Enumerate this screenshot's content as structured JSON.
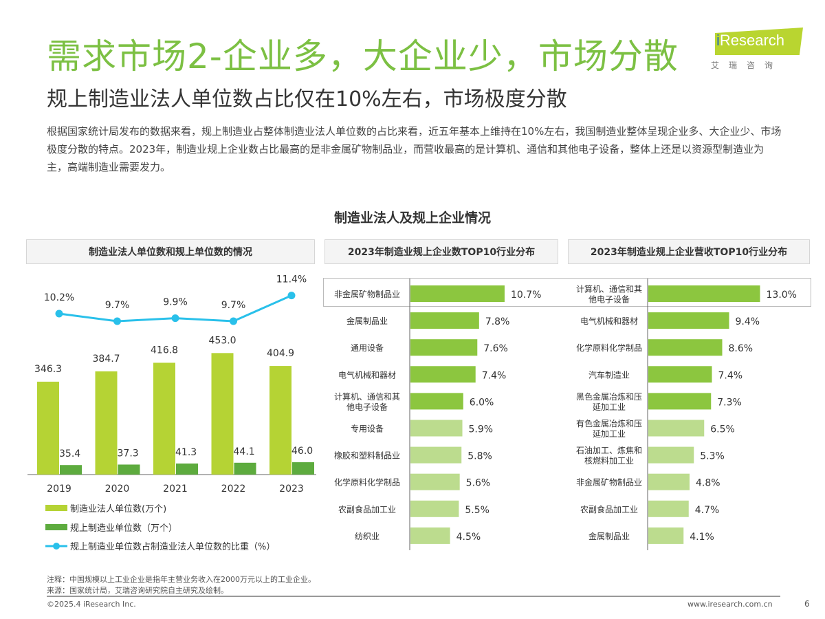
{
  "header": {
    "title": "需求市场2-企业多，大企业少，市场分散",
    "subtitle": "规上制造业法人单位数占比仅在10%左右，市场极度分散",
    "body": "根据国家统计局发布的数据来看，规上制造业占整体制造业法人单位数的占比来看，近五年基本上维持在10%左右，我国制造业整体呈现企业多、大企业少、市场极度分散的特点。2023年，制造业规上企业数占比最高的是非金属矿物制品业，而营收最高的是计算机、通信和其他电子设备，整体上还是以资源型制造业为主，高端制造业需要发力。"
  },
  "logo": {
    "brand": "iResearch",
    "cn": "艾瑞咨询"
  },
  "main_title": "制造业法人及规上企业情况",
  "colors": {
    "title": "#7cc043",
    "legal_units": "#b5d334",
    "above_scale": "#5dab3e",
    "ratio_line": "#29c0ea",
    "hbar_top5": "#8cc63f",
    "hbar_rest": "#bcdc8e"
  },
  "chart_data": [
    {
      "type": "bar+line",
      "title": "制造业法人单位数和规上单位数的情况",
      "categories": [
        "2019",
        "2020",
        "2021",
        "2022",
        "2023"
      ],
      "series": [
        {
          "name": "制造业法人单位数(万个)",
          "type": "bar",
          "values": [
            346.3,
            384.7,
            416.8,
            453.0,
            404.9
          ],
          "labels": [
            "346.3",
            "384.7",
            "416.8",
            "453.0",
            "404.9"
          ]
        },
        {
          "name": "规上制造业单位数（万个）",
          "type": "bar",
          "values": [
            35.4,
            37.3,
            41.3,
            44.1,
            46.0
          ],
          "labels": [
            "35.4",
            "37.3",
            "41.3",
            "44.1",
            "46.0"
          ]
        },
        {
          "name": "规上制造业单位数占制造业法人单位数的比重（%）",
          "type": "line",
          "values": [
            10.2,
            9.7,
            9.9,
            9.7,
            11.4
          ],
          "labels": [
            "10.2%",
            "9.7%",
            "9.9%",
            "9.7%",
            "11.4%"
          ]
        }
      ],
      "legend": "bottom"
    },
    {
      "type": "bar",
      "orientation": "horizontal",
      "title": "2023年制造业规上企业数TOP10行业分布",
      "categories": [
        "非金属矿物制品业",
        "金属制品业",
        "通用设备",
        "电气机械和器材",
        "计算机、通信和其他电子设备",
        "专用设备",
        "橡胶和塑料制品业",
        "化学原料化学制品",
        "农副食品加工业",
        "纺织业"
      ],
      "category_lines": [
        [
          "非金属矿物制品业"
        ],
        [
          "金属制品业"
        ],
        [
          "通用设备"
        ],
        [
          "电气机械和器材"
        ],
        [
          "计算机、通信和其",
          "他电子设备"
        ],
        [
          "专用设备"
        ],
        [
          "橡胶和塑料制品业"
        ],
        [
          "化学原料化学制品"
        ],
        [
          "农副食品加工业"
        ],
        [
          "纺织业"
        ]
      ],
      "values": [
        10.7,
        7.8,
        7.6,
        7.4,
        6.0,
        5.9,
        5.8,
        5.6,
        5.5,
        4.5
      ],
      "labels": [
        "10.7%",
        "7.8%",
        "7.6%",
        "7.4%",
        "6.0%",
        "5.9%",
        "5.8%",
        "5.6%",
        "5.5%",
        "4.5%"
      ],
      "unit": "%"
    },
    {
      "type": "bar",
      "orientation": "horizontal",
      "title": "2023年制造业规上企业营收TOP10行业分布",
      "categories": [
        "计算机、通信和其他电子设备",
        "电气机械和器材",
        "化学原料化学制品",
        "汽车制造业",
        "黑色金属冶炼和压延加工业",
        "有色金属冶炼和压延加工业",
        "石油加工、炼焦和核燃料加工业",
        "非金属矿物制品业",
        "农副食品加工业",
        "金属制品业"
      ],
      "category_lines": [
        [
          "计算机、通信和其",
          "他电子设备"
        ],
        [
          "电气机械和器材"
        ],
        [
          "化学原料化学制品"
        ],
        [
          "汽车制造业"
        ],
        [
          "黑色金属冶炼和压",
          "延加工业"
        ],
        [
          "有色金属冶炼和压",
          "延加工业"
        ],
        [
          "石油加工、炼焦和",
          "核燃料加工业"
        ],
        [
          "非金属矿物制品业"
        ],
        [
          "农副食品加工业"
        ],
        [
          "金属制品业"
        ]
      ],
      "values": [
        13.0,
        9.4,
        8.6,
        7.4,
        7.3,
        6.5,
        5.3,
        4.8,
        4.7,
        4.1
      ],
      "labels": [
        "13.0%",
        "9.4%",
        "8.6%",
        "7.4%",
        "7.3%",
        "6.5%",
        "5.3%",
        "4.8%",
        "4.7%",
        "4.1%"
      ],
      "unit": "%"
    }
  ],
  "footer": {
    "note": "注释：中国规模以上工业企业是指年主营业务收入在2000万元以上的工业企业。",
    "source": "来源：国家统计局，艾瑞咨询研究院自主研究及绘制。",
    "copyright": "©2025.4 iResearch Inc.",
    "website": "www.iresearch.com.cn",
    "page_number": "6"
  }
}
